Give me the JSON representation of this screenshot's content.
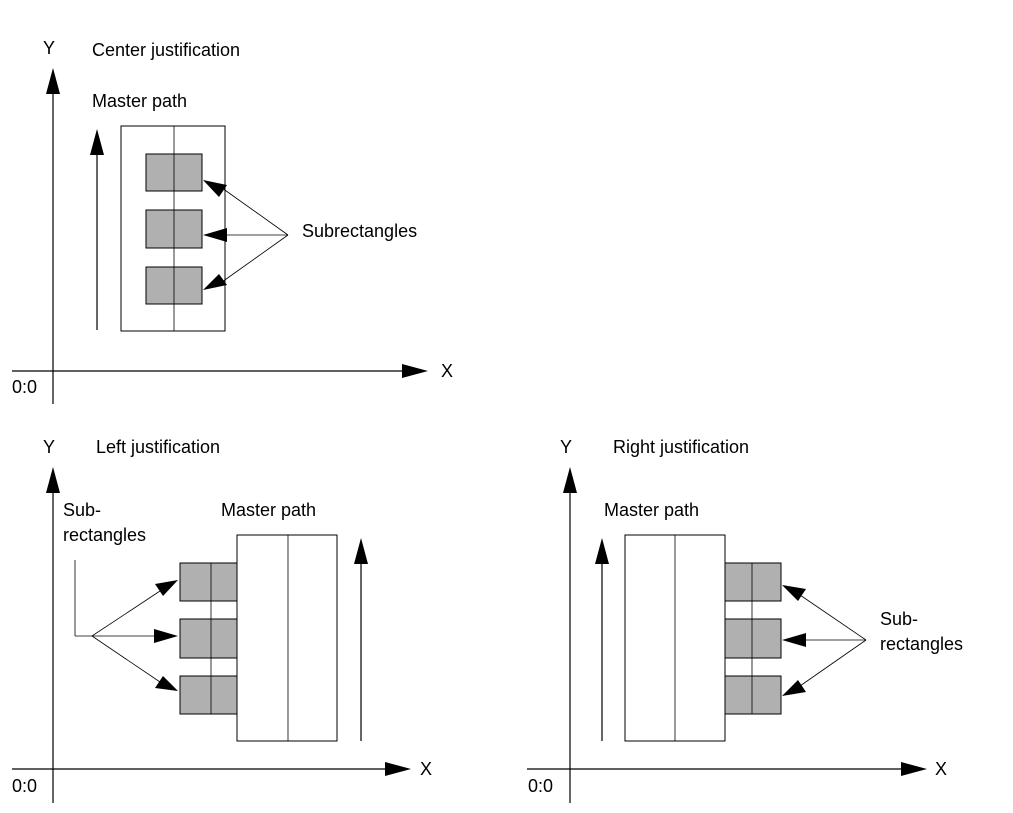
{
  "panels": {
    "center": {
      "title": "Center justification",
      "y_axis": "Y",
      "x_axis": "X",
      "origin": "0:0",
      "master_path": "Master path",
      "callout": "Subrectangles"
    },
    "left": {
      "title": "Left justification",
      "y_axis": "Y",
      "x_axis": "X",
      "origin": "0:0",
      "master_path": "Master path",
      "callout_line1": "Sub-",
      "callout_line2": "rectangles"
    },
    "right": {
      "title": "Right justification",
      "y_axis": "Y",
      "x_axis": "X",
      "origin": "0:0",
      "master_path": "Master path",
      "callout_line1": "Sub-",
      "callout_line2": "rectangles"
    }
  },
  "colors": {
    "subrectangle_fill": "#b0b0b0",
    "line": "#000000"
  }
}
